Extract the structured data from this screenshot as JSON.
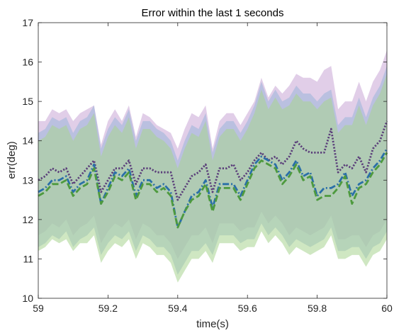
{
  "chart_data": {
    "type": "area",
    "title": "Error within the last 1 seconds",
    "xlabel": "time(s)",
    "ylabel": "err(deg)",
    "xlim": [
      59,
      60
    ],
    "ylim": [
      10,
      17
    ],
    "xticks": [
      59,
      59.2,
      59.4,
      59.6,
      59.8,
      60
    ],
    "xtick_labels": [
      "59",
      "59.2",
      "59.4",
      "59.6",
      "59.8",
      "60"
    ],
    "yticks": [
      10,
      11,
      12,
      13,
      14,
      15,
      16,
      17
    ],
    "ytick_labels": [
      "10",
      "11",
      "12",
      "13",
      "14",
      "15",
      "16",
      "17"
    ],
    "grid": false,
    "legend": "none",
    "x": [
      59.0,
      59.02,
      59.04,
      59.06,
      59.08,
      59.1,
      59.12,
      59.14,
      59.16,
      59.18,
      59.2,
      59.22,
      59.24,
      59.26,
      59.28,
      59.3,
      59.32,
      59.34,
      59.36,
      59.38,
      59.4,
      59.42,
      59.44,
      59.46,
      59.48,
      59.5,
      59.52,
      59.54,
      59.56,
      59.58,
      59.6,
      59.62,
      59.64,
      59.66,
      59.68,
      59.7,
      59.72,
      59.74,
      59.76,
      59.78,
      59.8,
      59.82,
      59.84,
      59.86,
      59.88,
      59.9,
      59.92,
      59.94,
      59.96,
      59.98,
      60.0
    ],
    "series": [
      {
        "line_style": "dotted",
        "color": "#5b3f7a",
        "band_color": "#c9a5d6",
        "mean": [
          13.0,
          13.1,
          13.3,
          13.2,
          13.3,
          12.9,
          13.1,
          13.3,
          13.5,
          12.7,
          13.0,
          13.3,
          13.3,
          13.5,
          12.9,
          13.3,
          13.3,
          13.2,
          13.2,
          13.2,
          12.5,
          12.8,
          13.1,
          13.2,
          13.4,
          12.7,
          13.3,
          13.3,
          13.4,
          13.0,
          13.2,
          13.5,
          13.7,
          13.5,
          13.6,
          13.4,
          13.6,
          14.0,
          13.8,
          13.7,
          13.7,
          13.7,
          14.3,
          13.2,
          13.4,
          13.3,
          13.6,
          13.2,
          13.8,
          14.0,
          14.5
        ],
        "upper": [
          14.5,
          14.5,
          14.8,
          14.7,
          14.8,
          14.5,
          14.7,
          14.8,
          14.9,
          13.9,
          14.5,
          14.8,
          14.5,
          14.9,
          14.1,
          14.7,
          14.6,
          14.4,
          14.3,
          14.2,
          13.8,
          14.3,
          14.7,
          14.6,
          14.9,
          13.8,
          14.5,
          14.7,
          14.7,
          14.4,
          14.7,
          15.0,
          15.6,
          15.1,
          15.4,
          15.2,
          15.4,
          15.7,
          15.6,
          15.6,
          15.5,
          15.8,
          15.9,
          14.8,
          15.0,
          15.0,
          15.5,
          15.0,
          15.5,
          15.8,
          16.3
        ],
        "lower": [
          11.6,
          11.7,
          11.9,
          11.8,
          12.0,
          11.6,
          11.8,
          11.9,
          12.1,
          11.4,
          11.7,
          11.9,
          11.8,
          12.0,
          11.5,
          11.9,
          11.8,
          11.6,
          11.6,
          11.4,
          11.0,
          11.3,
          11.6,
          11.6,
          11.8,
          11.4,
          11.9,
          11.9,
          11.9,
          11.7,
          11.8,
          11.8,
          12.2,
          11.9,
          12.1,
          11.9,
          11.6,
          11.8,
          11.7,
          11.6,
          11.7,
          11.8,
          12.1,
          11.5,
          11.5,
          11.6,
          11.6,
          11.3,
          11.6,
          11.7,
          12.0
        ]
      },
      {
        "line_style": "dash-dot",
        "color": "#2a6fa8",
        "band_color": "#9bb5d8",
        "mean": [
          12.7,
          12.8,
          13.0,
          13.0,
          13.1,
          12.7,
          12.9,
          13.0,
          13.4,
          12.4,
          12.8,
          13.2,
          13.1,
          13.3,
          12.6,
          13.0,
          13.0,
          12.8,
          12.9,
          12.7,
          11.8,
          12.2,
          12.6,
          12.7,
          13.0,
          12.3,
          12.9,
          12.9,
          12.9,
          12.6,
          13.0,
          13.4,
          13.6,
          13.5,
          13.4,
          13.0,
          13.2,
          13.5,
          13.1,
          13.2,
          12.6,
          12.8,
          12.8,
          12.9,
          13.2,
          12.6,
          12.9,
          13.0,
          13.3,
          13.5,
          13.8
        ],
        "upper": [
          14.2,
          14.3,
          14.6,
          14.5,
          14.6,
          14.2,
          14.5,
          14.6,
          14.9,
          13.8,
          14.3,
          14.6,
          14.4,
          14.8,
          14.0,
          14.5,
          14.5,
          14.3,
          14.2,
          14.0,
          13.5,
          14.0,
          14.4,
          14.3,
          14.7,
          13.7,
          14.3,
          14.5,
          14.5,
          14.2,
          14.5,
          14.9,
          15.5,
          15.0,
          15.3,
          15.0,
          15.1,
          15.4,
          15.2,
          15.2,
          15.0,
          15.2,
          15.3,
          14.4,
          14.6,
          14.6,
          15.1,
          14.6,
          15.1,
          15.4,
          15.9
        ],
        "lower": [
          11.3,
          11.4,
          11.6,
          11.5,
          11.7,
          11.3,
          11.5,
          11.6,
          11.8,
          11.1,
          11.4,
          11.6,
          11.5,
          11.7,
          11.2,
          11.6,
          11.5,
          11.3,
          11.3,
          11.1,
          10.6,
          10.9,
          11.2,
          11.2,
          11.4,
          11.1,
          11.6,
          11.6,
          11.6,
          11.4,
          11.5,
          11.5,
          11.9,
          11.6,
          11.8,
          11.6,
          11.3,
          11.5,
          11.4,
          11.3,
          11.4,
          11.5,
          11.8,
          11.2,
          11.2,
          11.3,
          11.3,
          11.0,
          11.3,
          11.4,
          11.7
        ]
      },
      {
        "line_style": "dashed",
        "color": "#4e9a3e",
        "band_color": "#a8d38f",
        "mean": [
          12.6,
          12.7,
          12.9,
          12.9,
          13.0,
          12.6,
          12.8,
          12.9,
          13.3,
          12.4,
          12.7,
          13.1,
          13.0,
          13.2,
          12.5,
          12.9,
          12.9,
          12.7,
          12.8,
          12.6,
          11.8,
          12.2,
          12.5,
          12.6,
          12.9,
          12.2,
          12.8,
          12.8,
          12.8,
          12.5,
          12.9,
          13.3,
          13.5,
          13.4,
          13.3,
          12.9,
          13.1,
          13.4,
          13.0,
          13.1,
          12.5,
          12.6,
          12.6,
          12.8,
          13.1,
          12.4,
          12.8,
          12.9,
          13.2,
          13.4,
          13.7
        ],
        "upper": [
          14.0,
          14.1,
          14.4,
          14.3,
          14.4,
          14.0,
          14.3,
          14.4,
          14.7,
          13.6,
          14.1,
          14.4,
          14.2,
          14.6,
          13.8,
          14.3,
          14.3,
          14.1,
          14.0,
          13.8,
          13.3,
          13.8,
          14.2,
          14.1,
          14.5,
          13.5,
          14.1,
          14.3,
          14.3,
          14.0,
          14.3,
          14.7,
          15.3,
          14.8,
          15.1,
          14.8,
          14.9,
          15.2,
          15.0,
          15.0,
          14.8,
          15.0,
          15.1,
          14.2,
          14.4,
          14.4,
          14.9,
          14.4,
          14.9,
          15.2,
          15.7
        ],
        "lower": [
          11.2,
          11.3,
          11.5,
          11.4,
          11.5,
          11.2,
          11.4,
          11.4,
          11.6,
          10.9,
          11.2,
          11.4,
          11.3,
          11.5,
          11.0,
          11.4,
          11.3,
          11.1,
          11.1,
          10.9,
          10.4,
          10.7,
          11.0,
          11.0,
          11.2,
          10.9,
          11.4,
          11.4,
          11.4,
          11.2,
          11.3,
          11.3,
          11.7,
          11.4,
          11.6,
          11.4,
          11.1,
          11.3,
          11.2,
          11.1,
          11.2,
          11.3,
          11.6,
          11.0,
          11.0,
          11.1,
          11.1,
          10.8,
          11.1,
          11.2,
          11.5
        ]
      }
    ]
  }
}
